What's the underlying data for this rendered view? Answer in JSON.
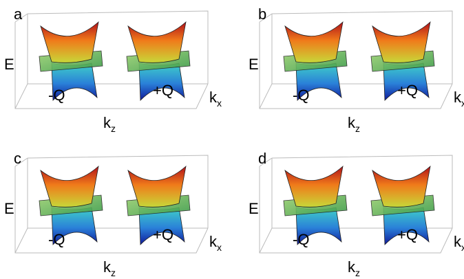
{
  "panels": [
    {
      "label": "a",
      "energy": "E",
      "left_node": "-Q",
      "right_node": "+Q",
      "kx": "k",
      "kx_sub": "x",
      "kz": "k",
      "kz_sub": "z"
    },
    {
      "label": "b",
      "energy": "E",
      "left_node": "-Q",
      "right_node": "+Q",
      "kx": "k",
      "kx_sub": "x",
      "kz": "k",
      "kz_sub": "z"
    },
    {
      "label": "c",
      "energy": "E",
      "left_node": "-Q",
      "right_node": "+Q",
      "kx": "k",
      "kx_sub": "x",
      "kz": "k",
      "kz_sub": "z"
    },
    {
      "label": "d",
      "energy": "E",
      "left_node": "-Q",
      "right_node": "+Q",
      "kx": "k",
      "kx_sub": "x",
      "kz": "k",
      "kz_sub": "z"
    }
  ]
}
